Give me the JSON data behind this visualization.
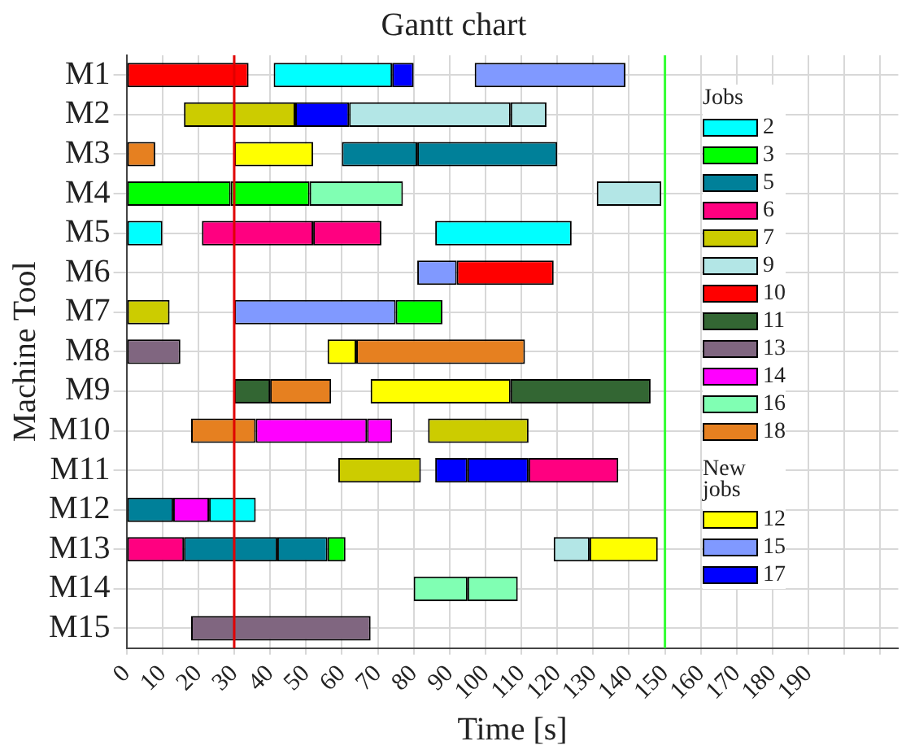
{
  "chart_data": {
    "type": "bar",
    "orientation": "horizontal",
    "title": "Gantt chart",
    "xlabel": "Time [s]",
    "ylabel": "Machine Tool",
    "legend_title": "Jobs",
    "annotations": [
      "New jobs"
    ],
    "legend": "right",
    "grid": true,
    "categories": [
      "M1",
      "M2",
      "M3",
      "M4",
      "M5",
      "M6",
      "M7",
      "M8",
      "M9",
      "M10",
      "M11",
      "M12",
      "M13",
      "M14",
      "M15"
    ],
    "xlim": [
      0,
      215
    ],
    "xticks": [
      0,
      10,
      20,
      30,
      40,
      50,
      60,
      70,
      80,
      90,
      100,
      110,
      120,
      130,
      140,
      150,
      160,
      170,
      180,
      190,
      {
        "value": 200,
        "label": null
      },
      {
        "value": 210,
        "label": null
      }
    ],
    "ref_lines": [
      {
        "axis": "x",
        "value": 30,
        "color": "#e00000"
      },
      {
        "axis": "x",
        "value": 150,
        "color": "#33ff33"
      }
    ],
    "series": [
      {
        "name": "2",
        "color": "#00ffff",
        "base": [
          41,
          null,
          null,
          null,
          0,
          null,
          null,
          null,
          null,
          null,
          null,
          23,
          null,
          null,
          null
        ],
        "values": [
          33,
          null,
          null,
          null,
          10,
          null,
          null,
          null,
          null,
          null,
          null,
          13,
          null,
          null,
          null
        ]
      },
      {
        "name": "3",
        "color": "#00ff00",
        "base": [
          null,
          null,
          null,
          0,
          null,
          null,
          75,
          null,
          null,
          null,
          null,
          null,
          56,
          null,
          null
        ],
        "values": [
          null,
          null,
          null,
          29,
          null,
          null,
          13,
          null,
          null,
          null,
          null,
          null,
          5,
          null,
          null
        ]
      },
      {
        "name": "5",
        "color": "#008099",
        "base": [
          null,
          null,
          60,
          null,
          null,
          null,
          null,
          null,
          null,
          null,
          null,
          0,
          16,
          null,
          null
        ],
        "values": [
          null,
          null,
          21,
          null,
          null,
          null,
          null,
          null,
          null,
          null,
          null,
          13,
          26,
          null,
          null
        ]
      },
      {
        "name": "6",
        "color": "#ff0080",
        "base": [
          null,
          null,
          null,
          null,
          21,
          null,
          null,
          null,
          null,
          null,
          112,
          null,
          0,
          null,
          null
        ],
        "values": [
          null,
          null,
          null,
          null,
          31,
          null,
          null,
          null,
          null,
          null,
          25,
          null,
          16,
          null,
          null
        ]
      },
      {
        "name": "7",
        "color": "#cccc00",
        "base": [
          null,
          16,
          null,
          null,
          null,
          null,
          0,
          null,
          null,
          84,
          59,
          null,
          null,
          null,
          null
        ],
        "values": [
          null,
          31,
          null,
          null,
          null,
          null,
          12,
          null,
          null,
          28,
          23,
          null,
          null,
          null,
          null
        ]
      },
      {
        "name": "9",
        "color": "#b3e6e6",
        "base": [
          null,
          62,
          null,
          131,
          null,
          null,
          null,
          null,
          null,
          null,
          null,
          null,
          119,
          null,
          null
        ],
        "values": [
          null,
          45,
          null,
          18,
          null,
          null,
          null,
          null,
          null,
          null,
          null,
          null,
          10,
          null,
          null
        ]
      },
      {
        "name": "10",
        "color": "#ff0000",
        "base": [
          0,
          null,
          null,
          null,
          null,
          92,
          null,
          null,
          null,
          null,
          null,
          null,
          null,
          null,
          null
        ],
        "values": [
          34,
          null,
          null,
          null,
          null,
          27,
          null,
          null,
          null,
          null,
          null,
          null,
          null,
          null,
          null
        ]
      },
      {
        "name": "11",
        "color": "#336633",
        "base": [
          null,
          null,
          null,
          null,
          null,
          null,
          null,
          null,
          30,
          null,
          null,
          null,
          null,
          null,
          null
        ],
        "values": [
          null,
          null,
          null,
          null,
          null,
          null,
          null,
          null,
          10,
          null,
          null,
          null,
          null,
          null,
          null
        ]
      },
      {
        "name": "13",
        "color": "#806680",
        "base": [
          null,
          null,
          null,
          null,
          null,
          null,
          null,
          0,
          null,
          null,
          null,
          null,
          null,
          null,
          18
        ],
        "values": [
          null,
          null,
          null,
          null,
          null,
          null,
          null,
          15,
          null,
          null,
          null,
          null,
          null,
          null,
          50
        ]
      },
      {
        "name": "14",
        "color": "#ff00ff",
        "base": [
          null,
          null,
          null,
          null,
          null,
          null,
          null,
          null,
          null,
          36,
          null,
          13,
          null,
          null,
          null
        ],
        "values": [
          null,
          null,
          null,
          null,
          null,
          null,
          null,
          null,
          null,
          31,
          null,
          10,
          null,
          null,
          null
        ]
      },
      {
        "name": "16",
        "color": "#80ffb3",
        "base": [
          null,
          null,
          null,
          51,
          null,
          null,
          null,
          null,
          null,
          null,
          null,
          null,
          null,
          80,
          null
        ],
        "values": [
          null,
          null,
          null,
          26,
          null,
          null,
          null,
          null,
          null,
          null,
          null,
          null,
          null,
          15,
          null
        ]
      },
      {
        "name": "18",
        "color": "#e68020",
        "base": [
          null,
          null,
          0,
          null,
          null,
          null,
          null,
          64,
          40,
          18,
          null,
          null,
          null,
          null,
          null
        ],
        "values": [
          null,
          null,
          8,
          null,
          null,
          null,
          null,
          47,
          17,
          18,
          null,
          null,
          null,
          null,
          null
        ]
      },
      {
        "name": "12",
        "color": "#ffff00",
        "base": [
          null,
          null,
          30,
          null,
          null,
          null,
          null,
          56,
          68,
          null,
          null,
          null,
          129,
          null,
          null
        ],
        "values": [
          null,
          null,
          22,
          null,
          null,
          null,
          null,
          8,
          39,
          null,
          null,
          null,
          19,
          null,
          null
        ]
      },
      {
        "name": "15",
        "color": "#8099ff",
        "base": [
          97,
          null,
          null,
          null,
          null,
          81,
          30,
          null,
          null,
          null,
          null,
          null,
          null,
          null,
          null
        ],
        "values": [
          42,
          null,
          null,
          null,
          null,
          11,
          45,
          null,
          null,
          null,
          null,
          null,
          null,
          null,
          null
        ]
      },
      {
        "name": "17",
        "color": "#0000ff",
        "base": [
          74,
          47,
          null,
          null,
          null,
          null,
          null,
          null,
          null,
          null,
          86,
          null,
          null,
          null,
          null
        ],
        "values": [
          6,
          15,
          null,
          null,
          null,
          null,
          null,
          null,
          null,
          null,
          9,
          null,
          null,
          null,
          null
        ]
      },
      {
        "color": "#00ffff",
        "base": [
          null,
          null,
          null,
          null,
          86,
          null,
          null,
          null,
          null,
          null,
          null,
          null,
          null,
          null,
          null
        ],
        "values": [
          null,
          null,
          null,
          null,
          38,
          null,
          null,
          null,
          null,
          null,
          null,
          null,
          null,
          null,
          null
        ]
      },
      {
        "color": "#00ff00",
        "base": [
          null,
          null,
          null,
          29,
          null,
          null,
          null,
          null,
          null,
          null,
          null,
          null,
          null,
          null,
          null
        ],
        "values": [
          null,
          null,
          null,
          22,
          null,
          null,
          null,
          null,
          null,
          null,
          null,
          null,
          null,
          null,
          null
        ]
      },
      {
        "color": "#008099",
        "base": [
          null,
          null,
          81,
          null,
          null,
          null,
          null,
          null,
          null,
          null,
          null,
          null,
          42,
          null,
          null
        ],
        "values": [
          null,
          null,
          39,
          null,
          null,
          null,
          null,
          null,
          null,
          null,
          null,
          null,
          14,
          null,
          null
        ]
      },
      {
        "color": "#ff0080",
        "base": [
          null,
          null,
          null,
          null,
          52,
          null,
          null,
          null,
          null,
          null,
          null,
          null,
          null,
          null,
          null
        ],
        "values": [
          null,
          null,
          null,
          null,
          19,
          null,
          null,
          null,
          null,
          null,
          null,
          null,
          null,
          null,
          null
        ]
      },
      {
        "color": "#b3e6e6",
        "base": [
          null,
          107,
          null,
          null,
          null,
          null,
          null,
          null,
          null,
          null,
          null,
          null,
          null,
          null,
          null
        ],
        "values": [
          null,
          10,
          null,
          null,
          null,
          null,
          null,
          null,
          null,
          null,
          null,
          null,
          null,
          null,
          null
        ]
      },
      {
        "color": "#336633",
        "base": [
          null,
          null,
          null,
          null,
          null,
          null,
          null,
          null,
          107,
          null,
          null,
          null,
          null,
          null,
          null
        ],
        "values": [
          null,
          null,
          null,
          null,
          null,
          null,
          null,
          null,
          39,
          null,
          null,
          null,
          null,
          null,
          null
        ]
      },
      {
        "color": "#ff00ff",
        "base": [
          null,
          null,
          null,
          null,
          null,
          null,
          null,
          null,
          null,
          67,
          null,
          null,
          null,
          null,
          null
        ],
        "values": [
          null,
          null,
          null,
          null,
          null,
          null,
          null,
          null,
          null,
          7,
          null,
          null,
          null,
          null,
          null
        ]
      },
      {
        "color": "#80ffb3",
        "base": [
          null,
          null,
          null,
          null,
          null,
          null,
          null,
          null,
          null,
          null,
          null,
          null,
          null,
          95,
          null
        ],
        "values": [
          null,
          null,
          null,
          null,
          null,
          null,
          null,
          null,
          null,
          null,
          null,
          null,
          null,
          14,
          null
        ]
      },
      {
        "color": "#0000ff",
        "base": [
          null,
          null,
          null,
          null,
          null,
          null,
          null,
          null,
          null,
          null,
          95,
          null,
          null,
          null,
          null
        ],
        "values": [
          null,
          null,
          null,
          null,
          null,
          null,
          null,
          null,
          null,
          null,
          17,
          null,
          null,
          null,
          null
        ]
      }
    ]
  }
}
